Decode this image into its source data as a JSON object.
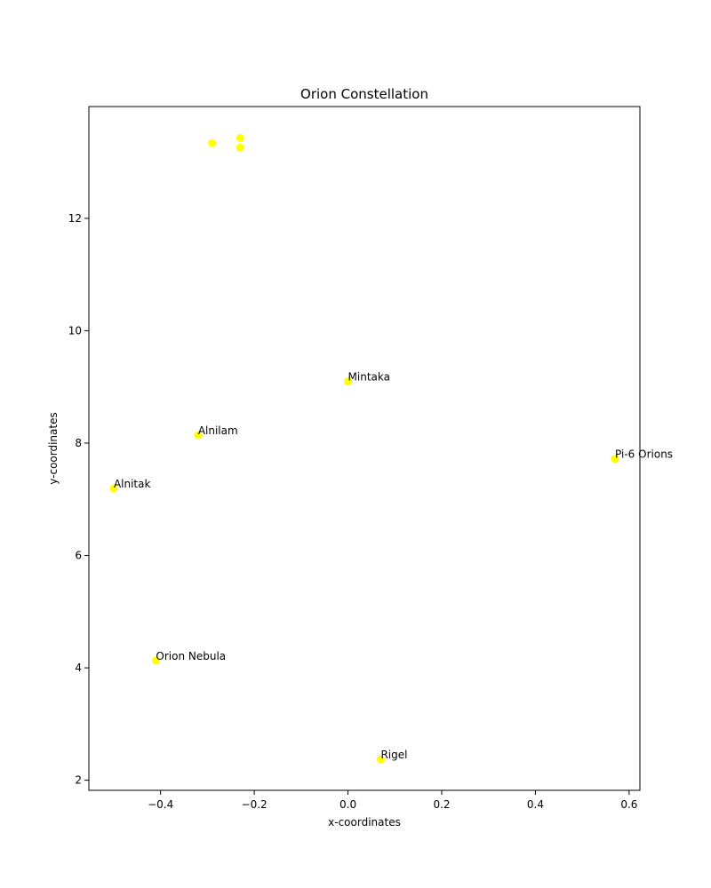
{
  "chart_data": {
    "type": "scatter",
    "title": "Orion Constellation",
    "xlabel": "x-coordinates",
    "ylabel": "y-coordinates",
    "xlim": [
      -0.553,
      0.623
    ],
    "ylim": [
      1.82,
      13.99
    ],
    "xticks": [
      -0.4,
      -0.2,
      0.0,
      0.2,
      0.4,
      0.6
    ],
    "xtick_labels": [
      "−0.4",
      "−0.2",
      "0.0",
      "0.2",
      "0.4",
      "0.6"
    ],
    "yticks": [
      2,
      4,
      6,
      8,
      10,
      12
    ],
    "ytick_labels": [
      "2",
      "4",
      "6",
      "8",
      "10",
      "12"
    ],
    "grid": false,
    "marker_color": "#ffff00",
    "points": [
      {
        "x": -0.41,
        "y": 4.13,
        "label": "Orion Nebula"
      },
      {
        "x": 0.07,
        "y": 2.37,
        "label": "Rigel"
      },
      {
        "x": -0.5,
        "y": 7.19,
        "label": "Alnitak"
      },
      {
        "x": -0.32,
        "y": 8.14,
        "label": "Alnilam"
      },
      {
        "x": 0.0,
        "y": 9.1,
        "label": "Mintaka"
      },
      {
        "x": 0.57,
        "y": 7.72,
        "label": "Pi-6 Orions"
      },
      {
        "x": -0.29,
        "y": 13.34,
        "label": ""
      },
      {
        "x": -0.23,
        "y": 13.43,
        "label": ""
      },
      {
        "x": -0.23,
        "y": 13.26,
        "label": ""
      }
    ]
  }
}
